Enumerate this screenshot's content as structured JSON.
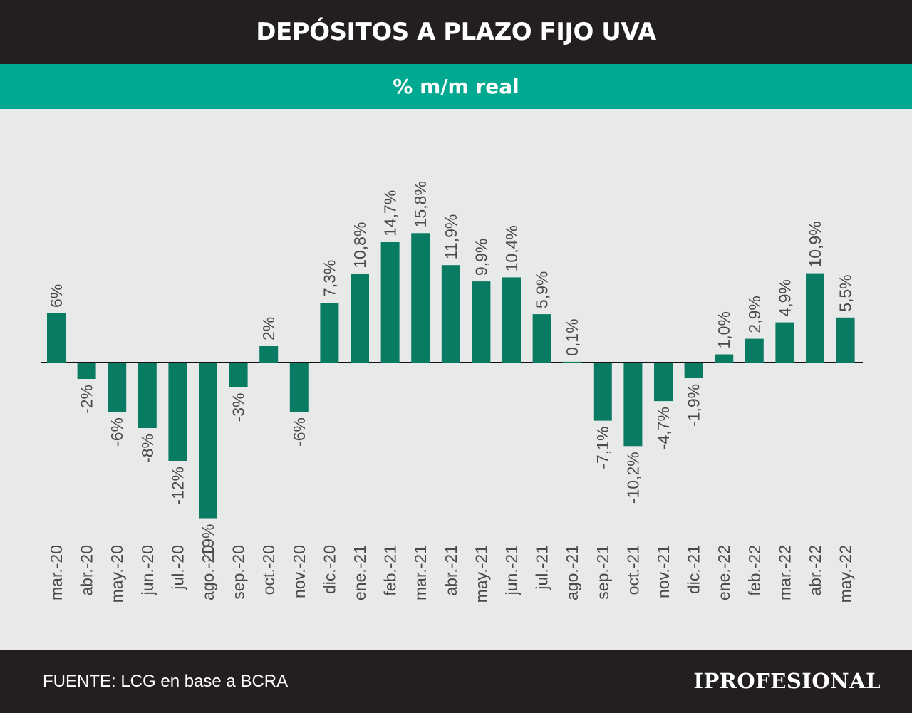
{
  "header": {
    "title": "DEPÓSITOS A PLAZO FIJO UVA"
  },
  "subheader": {
    "subtitle": "% m/m real"
  },
  "footer": {
    "source": "FUENTE: LCG en base a BCRA",
    "logo": "IPROFESIONAL"
  },
  "colors": {
    "bar": "#0a7b63",
    "header_bg": "#231f20",
    "subheader_bg": "#00a98f",
    "background": "#e8e9e9"
  },
  "chart_data": {
    "type": "bar",
    "title": "DEPÓSITOS A PLAZO FIJO UVA",
    "subtitle": "% m/m real",
    "xlabel": "",
    "ylabel": "",
    "ylim": [
      -19,
      16
    ],
    "grid": false,
    "categories": [
      "mar.-20",
      "abr.-20",
      "may.-20",
      "jun.-20",
      "jul.-20",
      "ago.-20",
      "sep.-20",
      "oct.-20",
      "nov.-20",
      "dic.-20",
      "ene.-21",
      "feb.-21",
      "mar.-21",
      "abr.-21",
      "may.-21",
      "jun.-21",
      "jul.-21",
      "ago.-21",
      "sep.-21",
      "oct.-21",
      "nov.-21",
      "dic.-21",
      "ene.-22",
      "feb.-22",
      "mar.-22",
      "abr.-22",
      "may.-22"
    ],
    "values": [
      6,
      -2,
      -6,
      -8,
      -12,
      -19,
      -3,
      2,
      -6,
      7.3,
      10.8,
      14.7,
      15.8,
      11.9,
      9.9,
      10.4,
      5.9,
      0.1,
      -7.1,
      -10.2,
      -4.7,
      -1.9,
      1.0,
      2.9,
      4.9,
      10.9,
      5.5
    ],
    "labels": [
      "6%",
      "-2%",
      "-6%",
      "-8%",
      "-12%",
      "-19%",
      "-3%",
      "2%",
      "-6%",
      "7,3%",
      "10,8%",
      "14,7%",
      "15,8%",
      "11,9%",
      "9,9%",
      "10,4%",
      "5,9%",
      "0,1%",
      "-7,1%",
      "-10,2%",
      "-4,7%",
      "-1,9%",
      "1,0%",
      "2,9%",
      "4,9%",
      "10,9%",
      "5,5%"
    ]
  }
}
